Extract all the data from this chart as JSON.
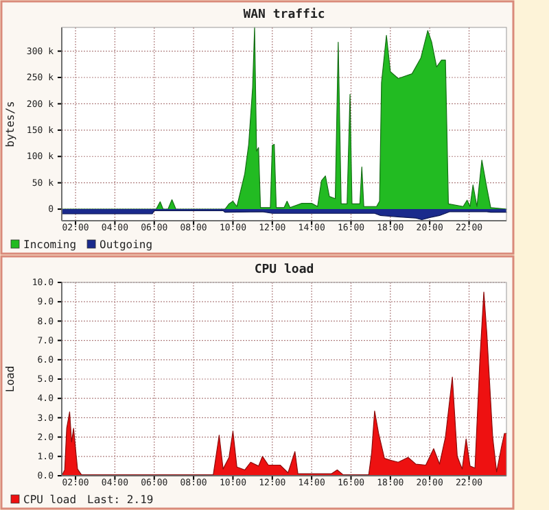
{
  "chart_data": [
    {
      "type": "area",
      "title": "WAN traffic",
      "ylabel": "bytes/s",
      "xlim": [
        1.3,
        23.9
      ],
      "ylim": [
        -22000,
        345000
      ],
      "xticks": [
        {
          "value": 2,
          "label": "02:00"
        },
        {
          "value": 4,
          "label": "04:00"
        },
        {
          "value": 6,
          "label": "06:00"
        },
        {
          "value": 8,
          "label": "08:00"
        },
        {
          "value": 10,
          "label": "10:00"
        },
        {
          "value": 12,
          "label": "12:00"
        },
        {
          "value": 14,
          "label": "14:00"
        },
        {
          "value": 16,
          "label": "16:00"
        },
        {
          "value": 18,
          "label": "18:00"
        },
        {
          "value": 20,
          "label": "20:00"
        },
        {
          "value": 22,
          "label": "22:00"
        }
      ],
      "yticks": [
        {
          "value": 0,
          "label": "0"
        },
        {
          "value": 50000,
          "label": "50 k"
        },
        {
          "value": 100000,
          "label": "100 k"
        },
        {
          "value": 150000,
          "label": "150 k"
        },
        {
          "value": 200000,
          "label": "200 k"
        },
        {
          "value": 250000,
          "label": "250 k"
        },
        {
          "value": 300000,
          "label": "300 k"
        }
      ],
      "grid": true,
      "legend": "bottom left",
      "series": [
        {
          "name": "Incoming",
          "color": "#22bb22",
          "x": [
            1.3,
            6.1,
            6.3,
            6.45,
            6.7,
            6.9,
            7.1,
            9.6,
            9.8,
            10.0,
            10.2,
            10.6,
            10.8,
            11.0,
            11.1,
            11.2,
            11.3,
            11.4,
            11.9,
            12.0,
            12.1,
            12.2,
            12.6,
            12.75,
            12.9,
            13.5,
            14.0,
            14.3,
            14.5,
            14.7,
            14.9,
            15.2,
            15.35,
            15.5,
            15.8,
            15.95,
            16.05,
            16.45,
            16.55,
            16.65,
            17.3,
            17.45,
            17.55,
            17.8,
            18.0,
            18.4,
            19.1,
            19.55,
            19.9,
            20.1,
            20.35,
            20.6,
            20.8,
            20.95,
            21.7,
            21.9,
            22.05,
            22.2,
            22.4,
            22.65,
            22.9,
            23.1,
            23.9
          ],
          "values": [
            0,
            0,
            14000,
            0,
            0,
            18000,
            0,
            0,
            10000,
            15000,
            5000,
            67000,
            123000,
            231000,
            345000,
            110000,
            117000,
            3000,
            3000,
            121000,
            123000,
            3000,
            3000,
            15000,
            3000,
            11000,
            11000,
            5000,
            54000,
            63000,
            24000,
            20000,
            317000,
            10000,
            10000,
            218000,
            10000,
            10000,
            80000,
            5000,
            5000,
            15000,
            240000,
            330000,
            261000,
            248000,
            257000,
            287000,
            339000,
            317000,
            270000,
            283000,
            283000,
            10000,
            5000,
            17000,
            5000,
            46000,
            5000,
            93000,
            41000,
            3000,
            0
          ]
        },
        {
          "name": "Outgoing",
          "color": "#1a2a8c",
          "x": [
            1.3,
            5.9,
            6.0,
            9.5,
            9.6,
            11.5,
            12.0,
            17.2,
            17.5,
            18.5,
            19.3,
            19.6,
            20.0,
            20.5,
            20.8,
            21.0,
            22.9,
            23.1,
            23.9
          ],
          "values": [
            -9000,
            -9000,
            -3000,
            -3000,
            -6000,
            -5000,
            -8000,
            -8000,
            -12000,
            -15000,
            -17000,
            -20000,
            -16000,
            -12000,
            -8000,
            -5000,
            -5000,
            -6000,
            -6000
          ]
        }
      ]
    },
    {
      "type": "area",
      "title": "CPU load",
      "ylabel": "Load",
      "xlim": [
        1.3,
        23.9
      ],
      "ylim": [
        0,
        10
      ],
      "xticks": [
        {
          "value": 2,
          "label": "02:00"
        },
        {
          "value": 4,
          "label": "04:00"
        },
        {
          "value": 6,
          "label": "06:00"
        },
        {
          "value": 8,
          "label": "08:00"
        },
        {
          "value": 10,
          "label": "10:00"
        },
        {
          "value": 12,
          "label": "12:00"
        },
        {
          "value": 14,
          "label": "14:00"
        },
        {
          "value": 16,
          "label": "16:00"
        },
        {
          "value": 18,
          "label": "18:00"
        },
        {
          "value": 20,
          "label": "20:00"
        },
        {
          "value": 22,
          "label": "22:00"
        }
      ],
      "yticks": [
        {
          "value": 0,
          "label": "0.0"
        },
        {
          "value": 1,
          "label": "1.0"
        },
        {
          "value": 2,
          "label": "2.0"
        },
        {
          "value": 3,
          "label": "3.0"
        },
        {
          "value": 4,
          "label": "4.0"
        },
        {
          "value": 5,
          "label": "5.0"
        },
        {
          "value": 6,
          "label": "6.0"
        },
        {
          "value": 7,
          "label": "7.0"
        },
        {
          "value": 8,
          "label": "8.0"
        },
        {
          "value": 9,
          "label": "9.0"
        },
        {
          "value": 10,
          "label": "10.0"
        }
      ],
      "grid": true,
      "legend": "bottom left",
      "annotations": [
        "Last: 2.19"
      ],
      "series": [
        {
          "name": "CPU load",
          "color": "#ee1111",
          "x": [
            1.3,
            1.45,
            1.55,
            1.7,
            1.8,
            1.9,
            2.1,
            2.3,
            9.0,
            9.3,
            9.5,
            9.8,
            10.0,
            10.2,
            10.6,
            10.9,
            11.3,
            11.5,
            11.8,
            12.4,
            12.8,
            13.15,
            13.3,
            15.0,
            15.3,
            15.6,
            16.9,
            17.05,
            17.2,
            17.4,
            17.7,
            18.0,
            18.4,
            18.9,
            19.3,
            19.8,
            20.2,
            20.5,
            20.8,
            21.15,
            21.4,
            21.65,
            21.85,
            22.05,
            22.3,
            22.55,
            22.75,
            22.9,
            23.2,
            23.4,
            23.65,
            23.8,
            23.9
          ],
          "values": [
            0,
            0.3,
            2.45,
            3.3,
            1.75,
            2.45,
            0.35,
            0.05,
            0.05,
            2.1,
            0.35,
            0.95,
            2.3,
            0.45,
            0.3,
            0.7,
            0.5,
            1.0,
            0.55,
            0.55,
            0.15,
            1.25,
            0.1,
            0.1,
            0.3,
            0.05,
            0.05,
            1.2,
            3.35,
            2.2,
            0.9,
            0.8,
            0.7,
            0.95,
            0.6,
            0.55,
            1.4,
            0.6,
            2.0,
            5.1,
            1.0,
            0.35,
            1.9,
            0.5,
            0.4,
            6.0,
            9.5,
            7.4,
            2.0,
            0.2,
            1.5,
            2.19,
            2.19
          ]
        }
      ]
    }
  ]
}
